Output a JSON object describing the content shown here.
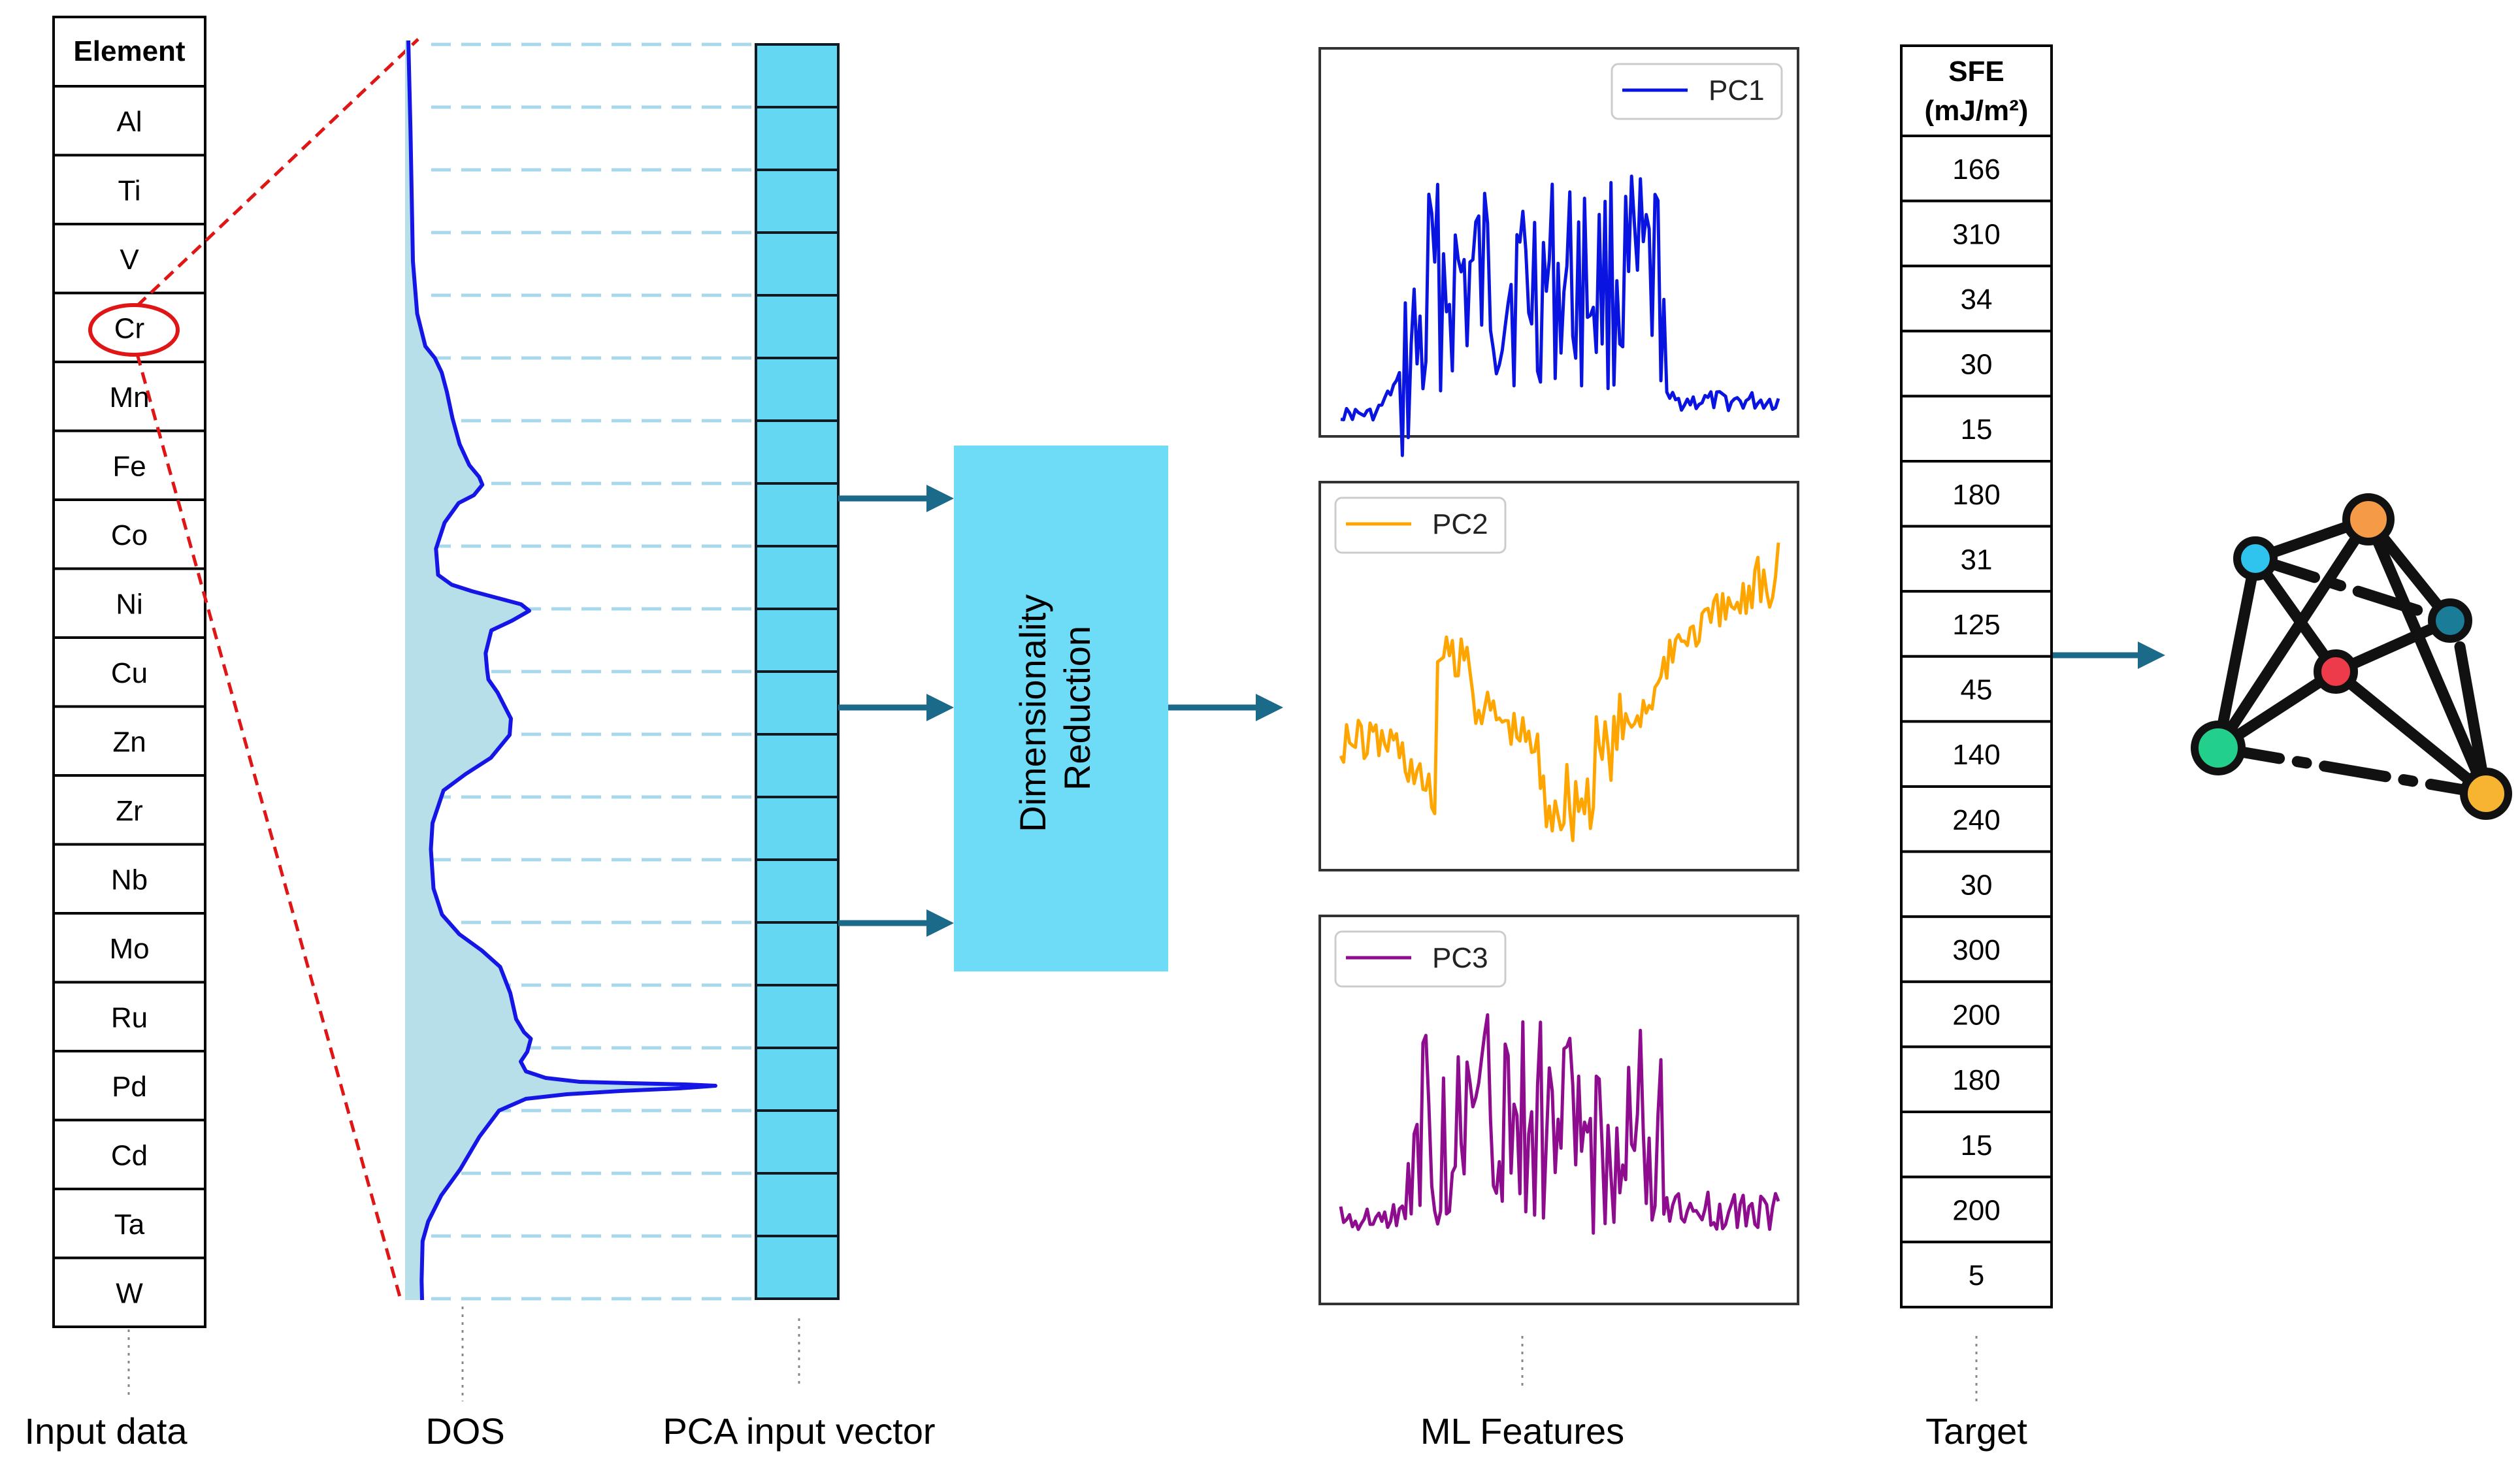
{
  "colors": {
    "pca_cell": "#64D7F2",
    "dr_box": "#6FDCF7",
    "arrow": "#1B6A8A",
    "dos_line": "#1515E6",
    "dos_fill": "#B6DFEA",
    "dash": "#A8D8EC",
    "red_dash": "#E01515",
    "pc1": "#0A14E0",
    "pc2": "#FFA500",
    "pc3": "#8E0C8E"
  },
  "element_table": {
    "header": "Element",
    "elements": [
      "Al",
      "Ti",
      "V",
      "Cr",
      "Mn",
      "Fe",
      "Co",
      "Ni",
      "Cu",
      "Zn",
      "Zr",
      "Nb",
      "Mo",
      "Ru",
      "Pd",
      "Cd",
      "Ta",
      "W"
    ],
    "highlighted": "Cr"
  },
  "dimensionality": {
    "line1": "Dimensionality",
    "line2": "Reduction"
  },
  "features": {
    "pc1_label": "PC1",
    "pc2_label": "PC2",
    "pc3_label": "PC3"
  },
  "target_table": {
    "header_line1": "SFE",
    "header_line2": "(mJ/m²)",
    "values": [
      "166",
      "310",
      "34",
      "30",
      "15",
      "180",
      "31",
      "125",
      "45",
      "140",
      "240",
      "30",
      "300",
      "200",
      "180",
      "15",
      "200",
      "5"
    ]
  },
  "captions": {
    "input_data": "Input data",
    "dos": "DOS",
    "pca_input": "PCA input vector",
    "ml_features": "ML Features",
    "target": "Target"
  },
  "network_icon": {
    "nodes": [
      {
        "name": "cyan",
        "color": "#2EC4EE"
      },
      {
        "name": "orange",
        "color": "#F59A46"
      },
      {
        "name": "teal",
        "color": "#1A7C96"
      },
      {
        "name": "red",
        "color": "#EE3B4A"
      },
      {
        "name": "green",
        "color": "#22D08C"
      },
      {
        "name": "yellow",
        "color": "#F7B430"
      }
    ]
  }
}
